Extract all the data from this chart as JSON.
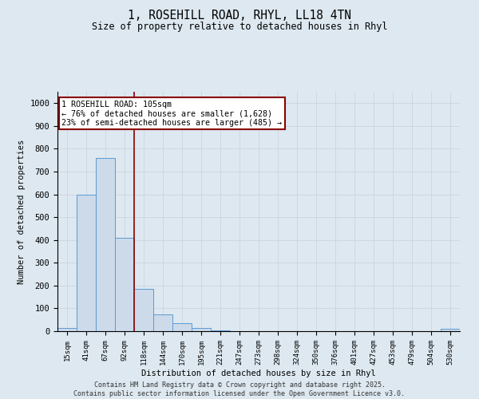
{
  "title_line1": "1, ROSEHILL ROAD, RHYL, LL18 4TN",
  "title_line2": "Size of property relative to detached houses in Rhyl",
  "xlabel": "Distribution of detached houses by size in Rhyl",
  "ylabel": "Number of detached properties",
  "categories": [
    "15sqm",
    "41sqm",
    "67sqm",
    "92sqm",
    "118sqm",
    "144sqm",
    "170sqm",
    "195sqm",
    "221sqm",
    "247sqm",
    "273sqm",
    "298sqm",
    "324sqm",
    "350sqm",
    "376sqm",
    "401sqm",
    "427sqm",
    "453sqm",
    "479sqm",
    "504sqm",
    "530sqm"
  ],
  "values": [
    15,
    600,
    760,
    410,
    185,
    75,
    35,
    15,
    5,
    0,
    0,
    0,
    0,
    0,
    0,
    0,
    0,
    0,
    0,
    0,
    10
  ],
  "bar_color": "#ccdaea",
  "bar_edge_color": "#5b9bd5",
  "vline_color": "#8b0000",
  "vline_x": 3.5,
  "annotation_box_text": "1 ROSEHILL ROAD: 105sqm\n← 76% of detached houses are smaller (1,628)\n23% of semi-detached houses are larger (485) →",
  "annotation_box_color": "#8b0000",
  "annotation_box_facecolor": "white",
  "ylim": [
    0,
    1050
  ],
  "yticks": [
    0,
    100,
    200,
    300,
    400,
    500,
    600,
    700,
    800,
    900,
    1000
  ],
  "grid_color": "#c8d0dc",
  "bg_color": "#dde8f0",
  "footer_line1": "Contains HM Land Registry data © Crown copyright and database right 2025.",
  "footer_line2": "Contains public sector information licensed under the Open Government Licence v3.0."
}
